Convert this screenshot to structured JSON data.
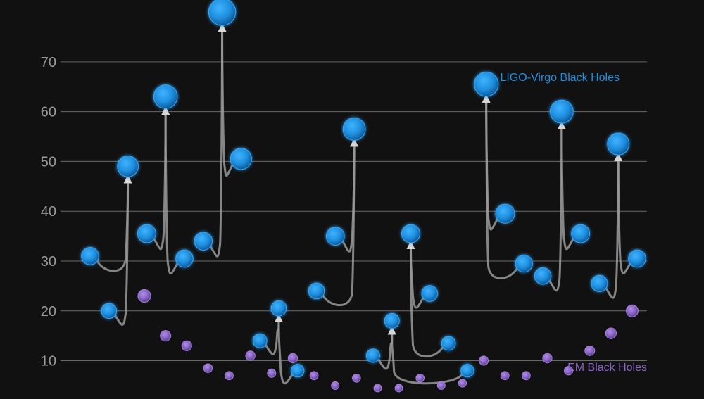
{
  "chart_data": {
    "type": "scatter",
    "title": "",
    "xlabel": "",
    "ylabel": "",
    "ylim": [
      4,
      81
    ],
    "yticks": [
      10,
      20,
      30,
      40,
      50,
      60,
      70
    ],
    "grid": true,
    "colors": {
      "ligo": "#1f8fdf",
      "em": "#8a63c4",
      "arrow": "#9a9a9a",
      "background": "#111112"
    },
    "series": [
      {
        "name": "LIGO-Virgo Black Holes",
        "key": "ligo",
        "points": [
          {
            "x": 1,
            "y": 31
          },
          {
            "x": 2,
            "y": 20
          },
          {
            "x": 3,
            "y": 49
          },
          {
            "x": 4,
            "y": 35.5
          },
          {
            "x": 5,
            "y": 63
          },
          {
            "x": 6,
            "y": 30.5
          },
          {
            "x": 7,
            "y": 34
          },
          {
            "x": 8,
            "y": 80
          },
          {
            "x": 9,
            "y": 50.5
          },
          {
            "x": 10,
            "y": 14
          },
          {
            "x": 11,
            "y": 20.5
          },
          {
            "x": 12,
            "y": 8
          },
          {
            "x": 13,
            "y": 24
          },
          {
            "x": 14,
            "y": 35
          },
          {
            "x": 15,
            "y": 56.5
          },
          {
            "x": 16,
            "y": 11
          },
          {
            "x": 17,
            "y": 18
          },
          {
            "x": 18,
            "y": 35.5
          },
          {
            "x": 19,
            "y": 23.5
          },
          {
            "x": 20,
            "y": 13.5
          },
          {
            "x": 21,
            "y": 8
          },
          {
            "x": 22,
            "y": 65.5
          },
          {
            "x": 23,
            "y": 39.5
          },
          {
            "x": 24,
            "y": 29.5
          },
          {
            "x": 25,
            "y": 27
          },
          {
            "x": 26,
            "y": 60
          },
          {
            "x": 27,
            "y": 35.5
          },
          {
            "x": 28,
            "y": 25.5
          },
          {
            "x": 29,
            "y": 53.5
          },
          {
            "x": 30,
            "y": 30.5
          }
        ]
      },
      {
        "name": "EM Black Holes",
        "key": "em",
        "points": [
          {
            "x": 1,
            "y": 23
          },
          {
            "x": 2,
            "y": 15
          },
          {
            "x": 3,
            "y": 13
          },
          {
            "x": 4,
            "y": 8.5
          },
          {
            "x": 5,
            "y": 7
          },
          {
            "x": 6,
            "y": 11
          },
          {
            "x": 7,
            "y": 7.5
          },
          {
            "x": 8,
            "y": 10.5
          },
          {
            "x": 9,
            "y": 7
          },
          {
            "x": 10,
            "y": 5
          },
          {
            "x": 11,
            "y": 6.5
          },
          {
            "x": 12,
            "y": 4.5
          },
          {
            "x": 13,
            "y": 4.5
          },
          {
            "x": 14,
            "y": 6.5
          },
          {
            "x": 15,
            "y": 5
          },
          {
            "x": 16,
            "y": 5.5
          },
          {
            "x": 17,
            "y": 10
          },
          {
            "x": 18,
            "y": 7
          },
          {
            "x": 19,
            "y": 7
          },
          {
            "x": 20,
            "y": 10.5
          },
          {
            "x": 21,
            "y": 8
          },
          {
            "x": 22,
            "y": 12
          },
          {
            "x": 23,
            "y": 15.5
          },
          {
            "x": 24,
            "y": 20
          }
        ]
      }
    ],
    "mergers": [
      {
        "from": [
          1,
          2
        ],
        "to": 3
      },
      {
        "from": [
          4,
          6
        ],
        "to": 5
      },
      {
        "from": [
          7,
          9
        ],
        "to": 8
      },
      {
        "from": [
          10,
          12
        ],
        "to": 11
      },
      {
        "from": [
          13,
          14
        ],
        "to": 15
      },
      {
        "from": [
          16,
          21
        ],
        "to": 17
      },
      {
        "from": [
          19,
          20
        ],
        "to": 18
      },
      {
        "from": [
          23,
          24
        ],
        "to": 22
      },
      {
        "from": [
          25,
          27
        ],
        "to": 26
      },
      {
        "from": [
          28,
          30
        ],
        "to": 29
      }
    ],
    "legend": [
      {
        "label": "LIGO-Virgo Black Holes",
        "key": "ligo",
        "placement": "top-right"
      },
      {
        "label": "EM Black Holes",
        "key": "em",
        "placement": "bottom-right"
      }
    ]
  }
}
